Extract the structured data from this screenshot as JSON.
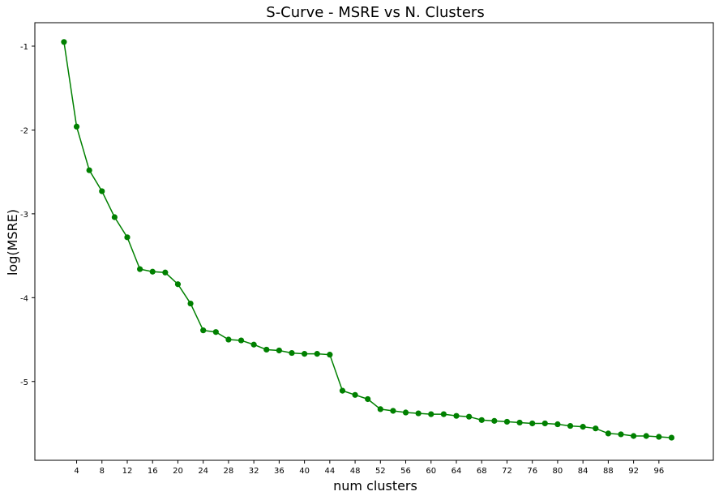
{
  "chart_data": {
    "type": "line",
    "title": "S-Curve - MSRE vs N. Clusters",
    "xlabel": "num clusters",
    "ylabel": "log(MSRE)",
    "xlim": [
      -2.6,
      104.6
    ],
    "ylim": [
      -5.94,
      -0.72
    ],
    "xticks": [
      4,
      8,
      12,
      16,
      20,
      24,
      28,
      32,
      36,
      40,
      44,
      48,
      52,
      56,
      60,
      64,
      68,
      72,
      76,
      80,
      84,
      88,
      92,
      96
    ],
    "yticks": [
      -1,
      -2,
      -3,
      -4,
      -5
    ],
    "ytick_labels": [
      "-1",
      "-2",
      "-3",
      "-4",
      "-5"
    ],
    "grid": false,
    "legend": "none",
    "series": [
      {
        "color": "#008000",
        "marker": "circle",
        "x": [
          2,
          4,
          6,
          8,
          10,
          12,
          14,
          16,
          18,
          20,
          22,
          24,
          26,
          28,
          30,
          32,
          34,
          36,
          38,
          40,
          42,
          44,
          46,
          48,
          50,
          52,
          54,
          56,
          58,
          60,
          62,
          64,
          66,
          68,
          70,
          72,
          74,
          76,
          78,
          80,
          82,
          84,
          86,
          88,
          90,
          92,
          94,
          96,
          98
        ],
        "y": [
          -0.95,
          -1.96,
          -2.48,
          -2.73,
          -3.04,
          -3.28,
          -3.66,
          -3.69,
          -3.7,
          -3.84,
          -4.07,
          -4.39,
          -4.41,
          -4.5,
          -4.51,
          -4.56,
          -4.62,
          -4.63,
          -4.66,
          -4.67,
          -4.67,
          -4.68,
          -5.11,
          -5.16,
          -5.21,
          -5.33,
          -5.35,
          -5.37,
          -5.38,
          -5.39,
          -5.39,
          -5.41,
          -5.42,
          -5.46,
          -5.47,
          -5.48,
          -5.49,
          -5.5,
          -5.5,
          -5.51,
          -5.53,
          -5.54,
          -5.56,
          -5.62,
          -5.63,
          -5.65,
          -5.65,
          -5.66,
          -5.67
        ]
      }
    ]
  }
}
